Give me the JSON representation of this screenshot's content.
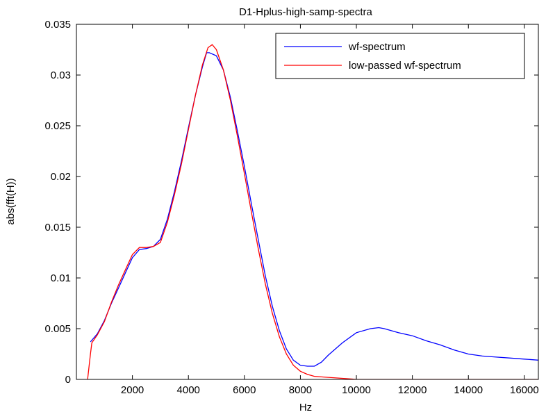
{
  "chart_data": {
    "type": "line",
    "title": "D1-Hplus-high-samp-spectra",
    "xlabel": "Hz",
    "ylabel": "abs(fft(H))",
    "xlim": [
      0,
      16500
    ],
    "ylim": [
      0,
      0.035
    ],
    "xticks": [
      2000,
      4000,
      6000,
      8000,
      10000,
      12000,
      14000,
      16000
    ],
    "xtick_labels": [
      "2000",
      "4000",
      "6000",
      "8000",
      "10000",
      "12000",
      "14000",
      "16000"
    ],
    "yticks": [
      0,
      0.005,
      0.01,
      0.015,
      0.02,
      0.025,
      0.03,
      0.035
    ],
    "ytick_labels": [
      "0",
      "0.005",
      "0.01",
      "0.015",
      "0.02",
      "0.025",
      "0.03",
      "0.035"
    ],
    "grid": false,
    "legend_position": "top-right",
    "series": [
      {
        "name": "wf-spectrum",
        "color": "#0000ff",
        "x": [
          500,
          750,
          1000,
          1250,
          1500,
          1750,
          2000,
          2250,
          2500,
          2750,
          3000,
          3250,
          3500,
          3750,
          4000,
          4250,
          4500,
          4650,
          4750,
          5000,
          5250,
          5500,
          5750,
          6000,
          6250,
          6500,
          6750,
          7000,
          7250,
          7500,
          7750,
          8000,
          8250,
          8500,
          8750,
          9000,
          9500,
          10000,
          10500,
          10800,
          11000,
          11500,
          12000,
          12500,
          13000,
          13500,
          14000,
          14500,
          15000,
          15500,
          16000,
          16500
        ],
        "y": [
          0.0037,
          0.0045,
          0.0058,
          0.0075,
          0.009,
          0.0105,
          0.012,
          0.0128,
          0.0129,
          0.0131,
          0.0138,
          0.0158,
          0.0185,
          0.0215,
          0.0248,
          0.028,
          0.0308,
          0.0322,
          0.0322,
          0.0319,
          0.0305,
          0.0278,
          0.0245,
          0.021,
          0.0173,
          0.0137,
          0.0102,
          0.0072,
          0.0048,
          0.003,
          0.0019,
          0.0014,
          0.0013,
          0.0013,
          0.0017,
          0.0024,
          0.0036,
          0.0046,
          0.005,
          0.0051,
          0.005,
          0.0046,
          0.0043,
          0.0038,
          0.0034,
          0.0029,
          0.0025,
          0.0023,
          0.0022,
          0.0021,
          0.002,
          0.0019
        ]
      },
      {
        "name": "low-passed wf-spectrum",
        "color": "#ff0000",
        "x": [
          400,
          500,
          550,
          750,
          1000,
          1250,
          1500,
          1750,
          2000,
          2250,
          2500,
          2750,
          3000,
          3250,
          3500,
          3750,
          4000,
          4250,
          4500,
          4700,
          4850,
          5000,
          5250,
          5500,
          5750,
          6000,
          6250,
          6500,
          6750,
          7000,
          7250,
          7500,
          7750,
          8000,
          8250,
          8500,
          9000,
          9500,
          10000,
          11000,
          12000,
          13000,
          14000,
          15000,
          16000,
          16500
        ],
        "y": [
          0.0,
          0.0025,
          0.0036,
          0.0044,
          0.0057,
          0.0076,
          0.0093,
          0.0108,
          0.0123,
          0.013,
          0.013,
          0.0131,
          0.0135,
          0.0155,
          0.0182,
          0.0212,
          0.0246,
          0.028,
          0.031,
          0.0327,
          0.033,
          0.0325,
          0.0305,
          0.0275,
          0.024,
          0.0203,
          0.0165,
          0.0128,
          0.0094,
          0.0065,
          0.0042,
          0.0025,
          0.0014,
          0.0008,
          0.0005,
          0.0003,
          0.0002,
          0.0001,
          0.0,
          0.0,
          0.0,
          0.0,
          0.0,
          0.0,
          0.0,
          0.0
        ]
      }
    ]
  }
}
